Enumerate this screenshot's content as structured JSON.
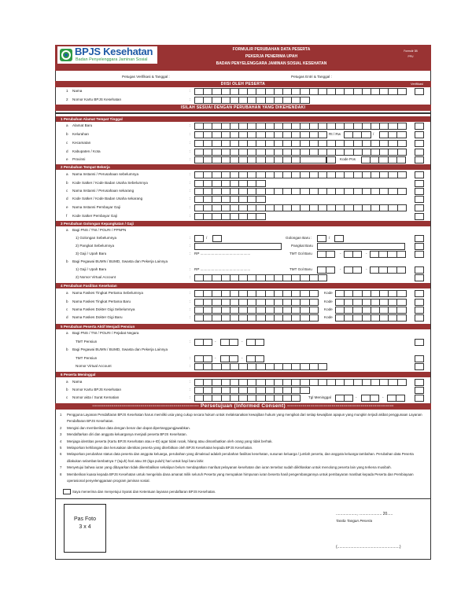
{
  "header": {
    "logo_text": "BPJS Kesehatan",
    "logo_sub": "Badan Penyelenggara Jaminan Sosial",
    "title_lines": [
      "FORMULIR PERUBAHAN DATA PESERTA",
      "PEKERJA PENERIMA UPAH",
      "BADAN PENYELENGGARA JAMINAN SOSIAL KESEHATAN"
    ],
    "form_code": [
      "Formulir 3B",
      "PPU"
    ]
  },
  "petugas": {
    "verifikasi": "Petugas Verifikasi & Tanggal :",
    "entri": "Petugas Entri & Tanggal :"
  },
  "bar_diisi": "DIISI OLEH PESERTA",
  "verifikasi_label": "Verifikasi",
  "identity": [
    {
      "num": "1",
      "label": "Nama"
    },
    {
      "num": "2",
      "label": "Nomor Kartu BPJS Kesehatan"
    }
  ],
  "bar_isilah": "ISILAH SESUAI DENGAN PERUBAHAN YANG DIKEHENDAKI",
  "sections": [
    {
      "title": "1  Perubahan Alamat Tempat Tinggal",
      "rows": [
        {
          "letter": "a",
          "label": "Alamat Baru"
        },
        {
          "letter": "b",
          "label": "Kelurahan",
          "extras": [
            "Rt / Rw",
            "/"
          ]
        },
        {
          "letter": "c",
          "label": "Kecamatan"
        },
        {
          "letter": "d",
          "label": "Kabupaten / Kota"
        },
        {
          "letter": "e",
          "label": "Provinsi",
          "extras": [
            "Kode Pos"
          ]
        }
      ]
    },
    {
      "title": "2  Perubahan Tempat Bekerja",
      "rows": [
        {
          "letter": "a",
          "label": "Nama Instansi / Perusahaan sebelumnya"
        },
        {
          "letter": "b",
          "label": "Kode Satker / Kode Badan Usaha Sebelumnya"
        },
        {
          "letter": "c",
          "label": "Nama Instansi / Perusahaan sekarang"
        },
        {
          "letter": "d",
          "label": "Kode Satker / Kode Badan Usaha sekarang"
        },
        {
          "letter": "e",
          "label": "Nama Instansi Pembayar Gaji"
        },
        {
          "letter": "f",
          "label": "Kode Satker Pembayar Gaji"
        }
      ]
    },
    {
      "title": "3  Perubahan Golongan Kepangkatan / Gaji",
      "rows": [
        {
          "letter": "a",
          "label": "Bagi PNS / TNI / POLRI / PPNPN"
        },
        {
          "letter": "",
          "label": "1) Golongan Sebelumnya",
          "extras": [
            "/",
            "Golongan Baru :",
            "/"
          ]
        },
        {
          "letter": "",
          "label": "2) Pangkat Sebelumnya",
          "extras": [
            "Pangkat Baru"
          ]
        },
        {
          "letter": "",
          "label": "3) Gaji / Upah Baru",
          "extras": [
            "RP ..................................................",
            "TMT Gol Baru",
            "-",
            "-"
          ]
        },
        {
          "letter": "b",
          "label": "Bagi Pegawai BUMN / BUMD, Swasta dan Pekerja Lainnya"
        },
        {
          "letter": "",
          "label": "1) Gaji / Upah Baru",
          "extras": [
            "RP ..................................................",
            "TMT Gol Baru",
            "-",
            "-"
          ]
        },
        {
          "letter": "",
          "label": "2) Nomor Virtual Account"
        }
      ]
    },
    {
      "title": "4  Perubahan Fasilitas Kesehatan",
      "rows": [
        {
          "letter": "a",
          "label": "Nama Faskes Tingkat Pertama Sebelumnya",
          "extras": [
            "Kode"
          ]
        },
        {
          "letter": "b",
          "label": "Nama Faskes Tingkat Pertama Baru",
          "extras": [
            "Kode"
          ]
        },
        {
          "letter": "c",
          "label": "Nama Faskes Dokter Gigi Sebelumnya",
          "extras": [
            "Kode"
          ]
        },
        {
          "letter": "d",
          "label": "Nama Faskes Dokter Gigi Baru",
          "extras": [
            "Kode"
          ]
        }
      ]
    },
    {
      "title": "5  Perubahan Peserta Aktif Menjadi Pensiun",
      "rows": [
        {
          "letter": "a",
          "label": "Bagi PNS / TNI / POLRI / Pejabat Negara"
        },
        {
          "letter": "",
          "label": "TMT Pensiun",
          "extras": [
            "-",
            "-"
          ]
        },
        {
          "letter": "b",
          "label": "Bagi Pegawai BUMN / BUMD, Swasta dan Pekerja Lainnya"
        },
        {
          "letter": "",
          "label": "TMT Pensiun",
          "extras": [
            "-",
            "-"
          ]
        },
        {
          "letter": "",
          "label": "Nomor Virtual Account"
        }
      ]
    },
    {
      "title": "6  Peserta Meninggal",
      "rows": [
        {
          "letter": "a",
          "label": "Nama"
        },
        {
          "letter": "b",
          "label": "Nomor Kartu BPJS Kesehatan"
        },
        {
          "letter": "c",
          "label": "Nomor akta / Surat Kematian",
          "extras": [
            "Tgl Meninggal",
            "-",
            "-"
          ]
        }
      ]
    }
  ],
  "consent": {
    "title": "------------------------------------------------------- Persetujuan (Informed Consent) -------------------------------------------------------",
    "items": [
      "Pengguna Layanan Pendaftaran BPJS Kesehatan harus memiliki usia yang cukup secara hukum untuk melaksanakan kewajiban hukum yang mengikat dari setiap kewajiban apapun yang mungkin terjadi akibat penggunaan Layanan Pendaftaran BPJS Kesehatan.",
      "Mengisi dan memberikan data dengan benar dan dapat dipertanggungjawabkan.",
      "Mendaftarkan diri dan anggota keluarganya menjadi peserta BPJS Kesehatan.",
      "Menjaga identitas peserta (Kartu BPJS Kesehatan atau e-ID) agar tidak rusak, hilang atau dimanfaatkan oleh orang yang tidak berhak.",
      "Melaporkan kehilangan dan kerusakan identitas peserta yang diterbitkan oleh BPJS Kesehatan kepada BPJS Kesehatan.",
      "Melaporkan perubahan status data peserta dan anggota keluarga, perubahan yang dimaksud adalah perubahan fasilitas kesehatan, susunan keluarga / jumlah peserta, dan anggota keluarga tambahan. Perubahan data Peserta dilakukan selambat-lambatnya 7 (tujuh) hari atau 30 (tiga puluh) hari untuk bayi baru lahir.",
      "Menyetujui bahwa iuran yang dibayarkan tidak dikembalikan sekalipun belum mendapatkan manfaat pelayanan kesehatan dan iuran tersebut sudah diikhlaskan untuk menolong peserta lain yang terkena musibah.",
      "Memberikan kuasa kepada BPJS Kesehatan untuk mengelola dana amanat milik seluruh Peserta yang merupakan himpunan iuran beserta hasil pengembangannya untuk pembayaran manfaat kepada Peserta dan Pembiayaan operasional penyelenggaraan program jaminan sosial."
    ],
    "checkbox_label": "Saya menerima dan menyetujui Syarat dan Ketentuan layanan pendaftaran BPJS Kesehatan."
  },
  "footer": {
    "photo": [
      "Pas Foto",
      "3 x 4"
    ],
    "date_line": "..................., ..................... 20.....",
    "signature_label": "Tanda Tangan Peserta",
    "name_line": "(.........................................................)"
  },
  "colors": {
    "brand": "#993333",
    "logo_green": "#2e9a45",
    "logo_blue": "#1f5aa6"
  }
}
